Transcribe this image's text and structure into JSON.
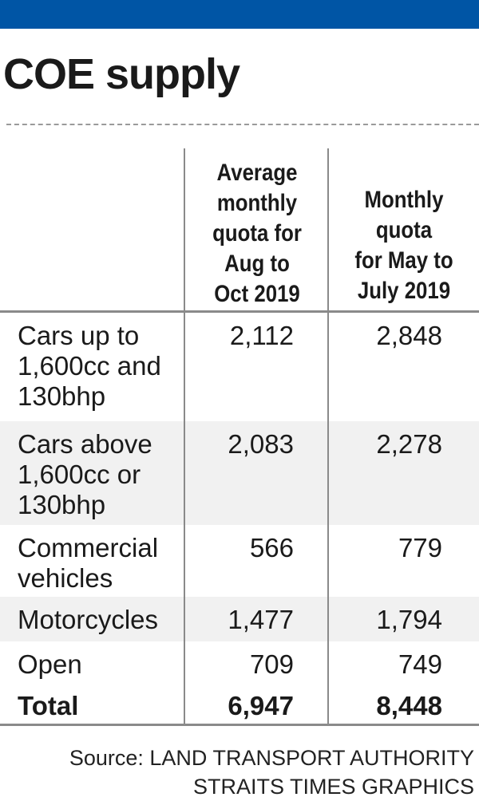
{
  "colors": {
    "top_bar": "#0055a5",
    "divider": "#8a8a8a",
    "row_band": "#f1f1f1"
  },
  "title": "COE supply",
  "chart_data": {
    "type": "table",
    "title": "COE supply",
    "columns": [
      "",
      "Average monthly quota for Aug to Oct 2019",
      "Monthly quota for May to July 2019"
    ],
    "header_lines": {
      "col1": [
        "Average",
        "monthly",
        "quota for",
        "Aug to",
        "Oct 2019"
      ],
      "col2": [
        "Monthly",
        "quota",
        "for May to",
        "July 2019"
      ]
    },
    "rows": [
      {
        "label": "Cars up to 1,600cc and 130bhp",
        "label_lines": [
          "Cars up to",
          "1,600cc and",
          "130bhp"
        ],
        "aug_oct_2019": "2,112",
        "may_jul_2019": "2,848"
      },
      {
        "label": "Cars above 1,600cc or 130bhp",
        "label_lines": [
          "Cars above",
          "1,600cc or",
          "130bhp"
        ],
        "aug_oct_2019": "2,083",
        "may_jul_2019": "2,278"
      },
      {
        "label": "Commercial vehicles",
        "label_lines": [
          "Commercial",
          "vehicles"
        ],
        "aug_oct_2019": "566",
        "may_jul_2019": "779"
      },
      {
        "label": "Motorcycles",
        "label_lines": [
          "Motorcycles"
        ],
        "aug_oct_2019": "1,477",
        "may_jul_2019": "1,794"
      },
      {
        "label": "Open",
        "label_lines": [
          "Open"
        ],
        "aug_oct_2019": "709",
        "may_jul_2019": "749"
      }
    ],
    "total": {
      "label": "Total",
      "aug_oct_2019": "6,947",
      "may_jul_2019": "8,448"
    }
  },
  "source": {
    "line1": "Source: LAND TRANSPORT AUTHORITY",
    "line2": "STRAITS TIMES GRAPHICS"
  }
}
